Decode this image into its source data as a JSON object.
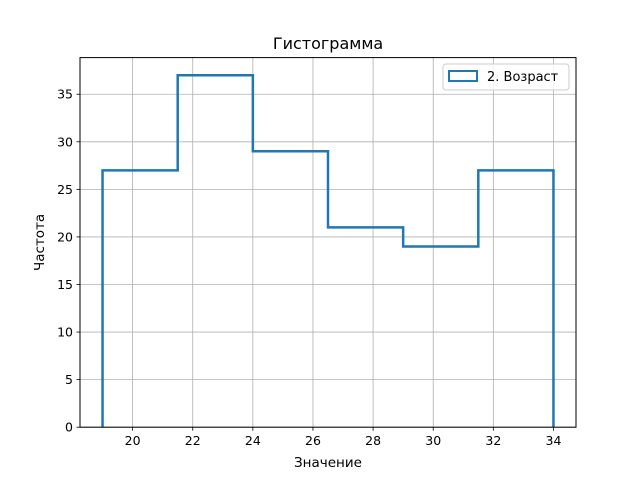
{
  "chart_data": {
    "type": "histogram-step",
    "title": "Гистограмма",
    "xlabel": "Значение",
    "ylabel": "Частота",
    "xlim": [
      18.25,
      34.75
    ],
    "ylim": [
      0,
      38.85
    ],
    "xticks": [
      20,
      22,
      24,
      26,
      28,
      30,
      32,
      34
    ],
    "yticks": [
      0,
      5,
      10,
      15,
      20,
      25,
      30,
      35
    ],
    "grid": true,
    "legend_position": "top-right",
    "bin_edges": [
      19,
      21.5,
      24,
      26.5,
      29,
      31.5,
      34
    ],
    "series": [
      {
        "name": "2. Возраст",
        "color": "#1f77b4",
        "values": [
          27,
          37,
          29,
          21,
          19,
          27
        ]
      }
    ]
  }
}
